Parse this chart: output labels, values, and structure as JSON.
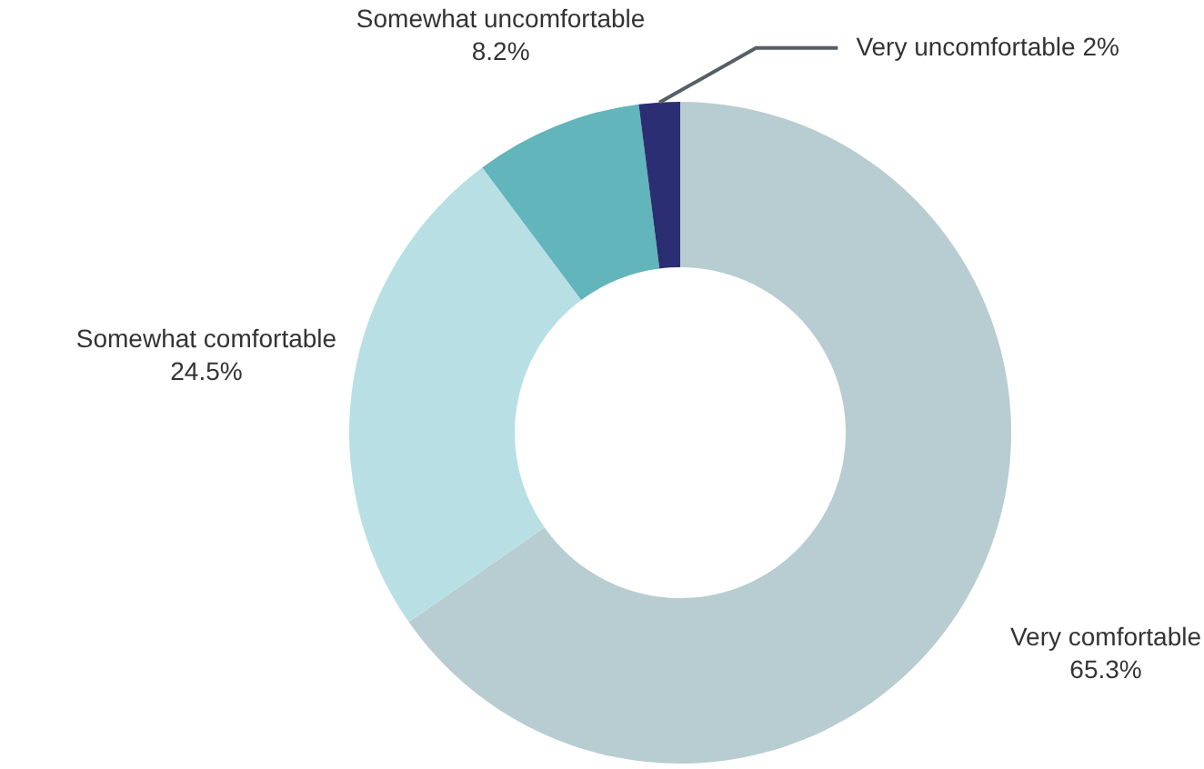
{
  "chart_data": {
    "type": "donut",
    "categories": [
      "Very comfortable",
      "Somewhat comfortable",
      "Somewhat uncomfortable",
      "Very uncomfortable"
    ],
    "values": [
      65.3,
      24.5,
      8.2,
      2
    ],
    "value_labels": [
      "65.3%",
      "24.5%",
      "8.2%",
      "2%"
    ],
    "colors": [
      "#b8cdd1",
      "#b8e0e4",
      "#62b5ba",
      "#2b2e73"
    ],
    "legend": false
  }
}
